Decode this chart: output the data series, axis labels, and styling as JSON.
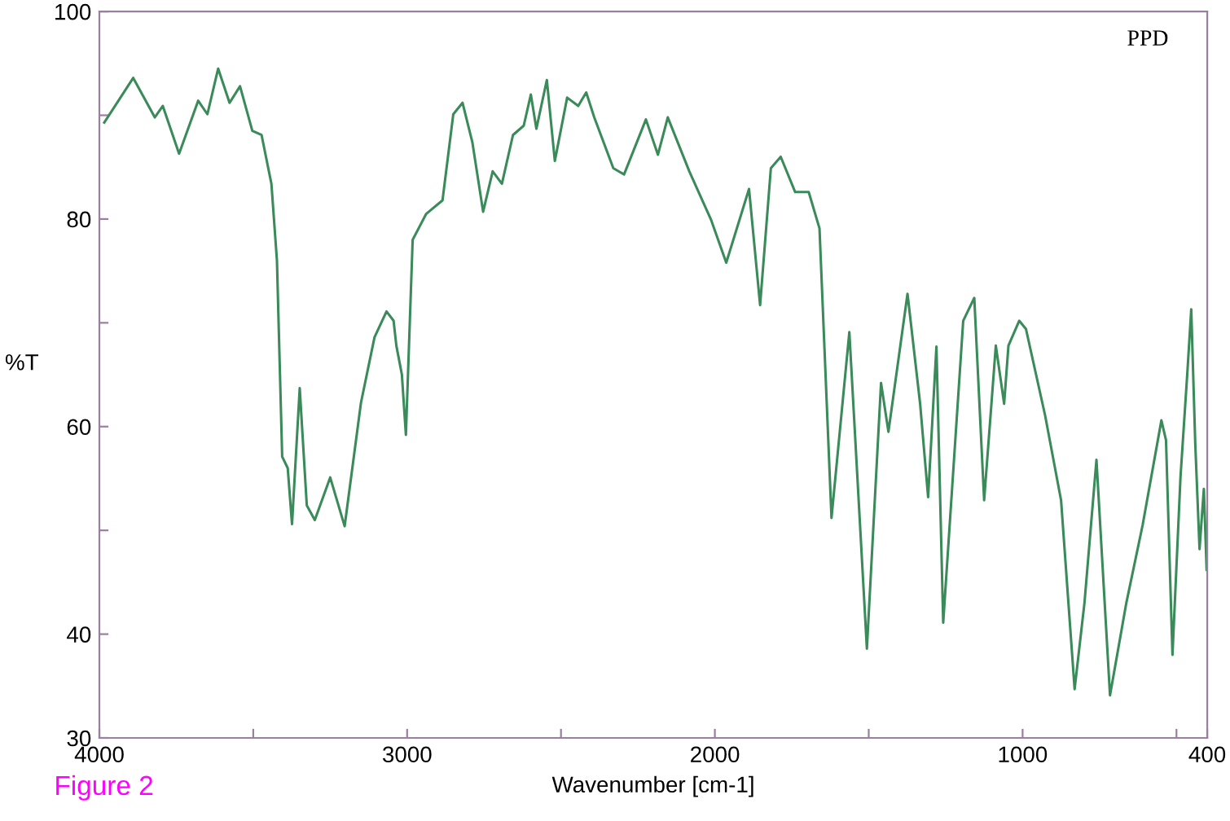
{
  "chart_data": {
    "type": "line",
    "xlabel": "Wavenumber [cm-1]",
    "ylabel": "%T",
    "annotations": [
      "PPD",
      "Figure 2"
    ],
    "xlim": [
      4000,
      400
    ],
    "xticks": [
      4000,
      {
        "value": 3500,
        "label": null
      },
      3000,
      {
        "value": 2500,
        "label": null
      },
      2000,
      {
        "value": 1500,
        "label": null
      },
      1000,
      {
        "value": 500,
        "label": null
      },
      400
    ],
    "ylim": [
      30,
      100
    ],
    "yticks": [
      30,
      40,
      {
        "value": 50,
        "label": null
      },
      60,
      {
        "value": 70,
        "label": null
      },
      80,
      {
        "value": 90,
        "label": null
      },
      100
    ],
    "grid": false,
    "legend": false,
    "marker": "none",
    "line_style": "solid",
    "series": [
      {
        "color": "#3a8a5a",
        "x": [
          3984,
          3890,
          3820,
          3794,
          3741,
          3679,
          3649,
          3614,
          3577,
          3543,
          3503,
          3473,
          3441,
          3423,
          3406,
          3388,
          3374,
          3349,
          3326,
          3300,
          3250,
          3203,
          3150,
          3106,
          3067,
          3044,
          3035,
          3017,
          3004,
          2982,
          2938,
          2885,
          2850,
          2820,
          2788,
          2753,
          2722,
          2692,
          2656,
          2621,
          2598,
          2580,
          2546,
          2520,
          2480,
          2444,
          2418,
          2392,
          2330,
          2295,
          2224,
          2185,
          2153,
          2083,
          2012,
          1963,
          1889,
          1853,
          1818,
          1786,
          1739,
          1695,
          1660,
          1621,
          1563,
          1506,
          1460,
          1436,
          1374,
          1333,
          1307,
          1280,
          1258,
          1193,
          1157,
          1125,
          1087,
          1060,
          1046,
          1011,
          989,
          927,
          875,
          831,
          799,
          760,
          716,
          663,
          610,
          549,
          534,
          513,
          487,
          464,
          452,
          439,
          425,
          411,
          402
        ],
        "values": [
          89.3,
          93.6,
          89.8,
          90.9,
          86.3,
          91.4,
          90.1,
          94.5,
          91.2,
          92.8,
          88.5,
          88.1,
          83.4,
          76.0,
          57.1,
          56.0,
          50.6,
          63.7,
          52.4,
          51.0,
          55.1,
          50.4,
          62.3,
          68.6,
          71.1,
          70.2,
          67.8,
          65.0,
          59.2,
          78.0,
          80.5,
          81.8,
          90.1,
          91.2,
          87.4,
          80.7,
          84.6,
          83.4,
          88.1,
          89.0,
          92.0,
          88.7,
          93.4,
          85.6,
          91.7,
          90.9,
          92.2,
          89.8,
          84.9,
          84.3,
          89.6,
          86.2,
          89.8,
          84.6,
          79.9,
          75.8,
          82.9,
          71.7,
          84.9,
          86.0,
          82.6,
          82.6,
          79.1,
          51.2,
          69.1,
          38.6,
          64.2,
          59.5,
          72.8,
          62.2,
          53.2,
          67.7,
          41.1,
          70.2,
          72.4,
          52.9,
          67.8,
          62.2,
          67.8,
          70.2,
          69.4,
          61.1,
          52.9,
          34.7,
          43.0,
          56.8,
          34.1,
          43.0,
          50.5,
          60.6,
          58.7,
          38.0,
          55.1,
          65.5,
          71.3,
          58.4,
          48.2,
          54.0,
          46.2
        ]
      }
    ]
  }
}
